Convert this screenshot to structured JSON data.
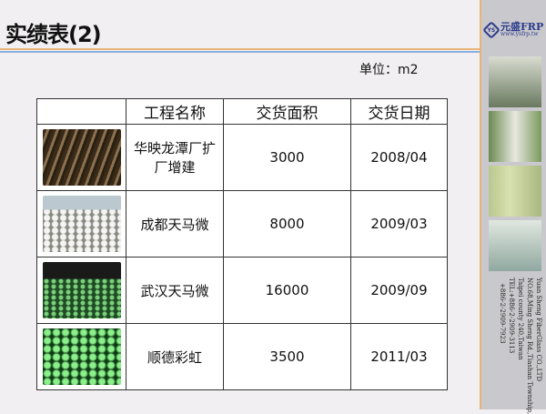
{
  "title": "实绩表(2)",
  "unit": "单位：m2",
  "table": {
    "headers": [
      "",
      "工程名称",
      "交货面积",
      "交货日期"
    ],
    "rows": [
      {
        "name": "华映龙潭厂扩厂增建",
        "area": "3000",
        "date": "2008/04"
      },
      {
        "name": "成都天马微",
        "area": "8000",
        "date": "2009/03"
      },
      {
        "name": "武汉天马微",
        "area": "16000",
        "date": "2009/09"
      },
      {
        "name": "顺德彩虹",
        "area": "3500",
        "date": "2011/03"
      }
    ]
  },
  "sidebar": {
    "logo_mark": "YS",
    "logo_name": "元盛FRP",
    "logo_url": "www.ysfrp.tw",
    "address": [
      "Yuan Sheng FiberGlass CO.,LTD",
      "NO.68,Ming Sheng Rd.,Tiashan Township,",
      "Taipei county 240,Taiwan",
      "TEL:+886-2-2909-3113",
      "+886-2-2909-7923"
    ]
  },
  "colors": {
    "accent_orange": "#e8b478",
    "accent_blue": "#8aaee0",
    "logo": "#2a3a8c"
  }
}
